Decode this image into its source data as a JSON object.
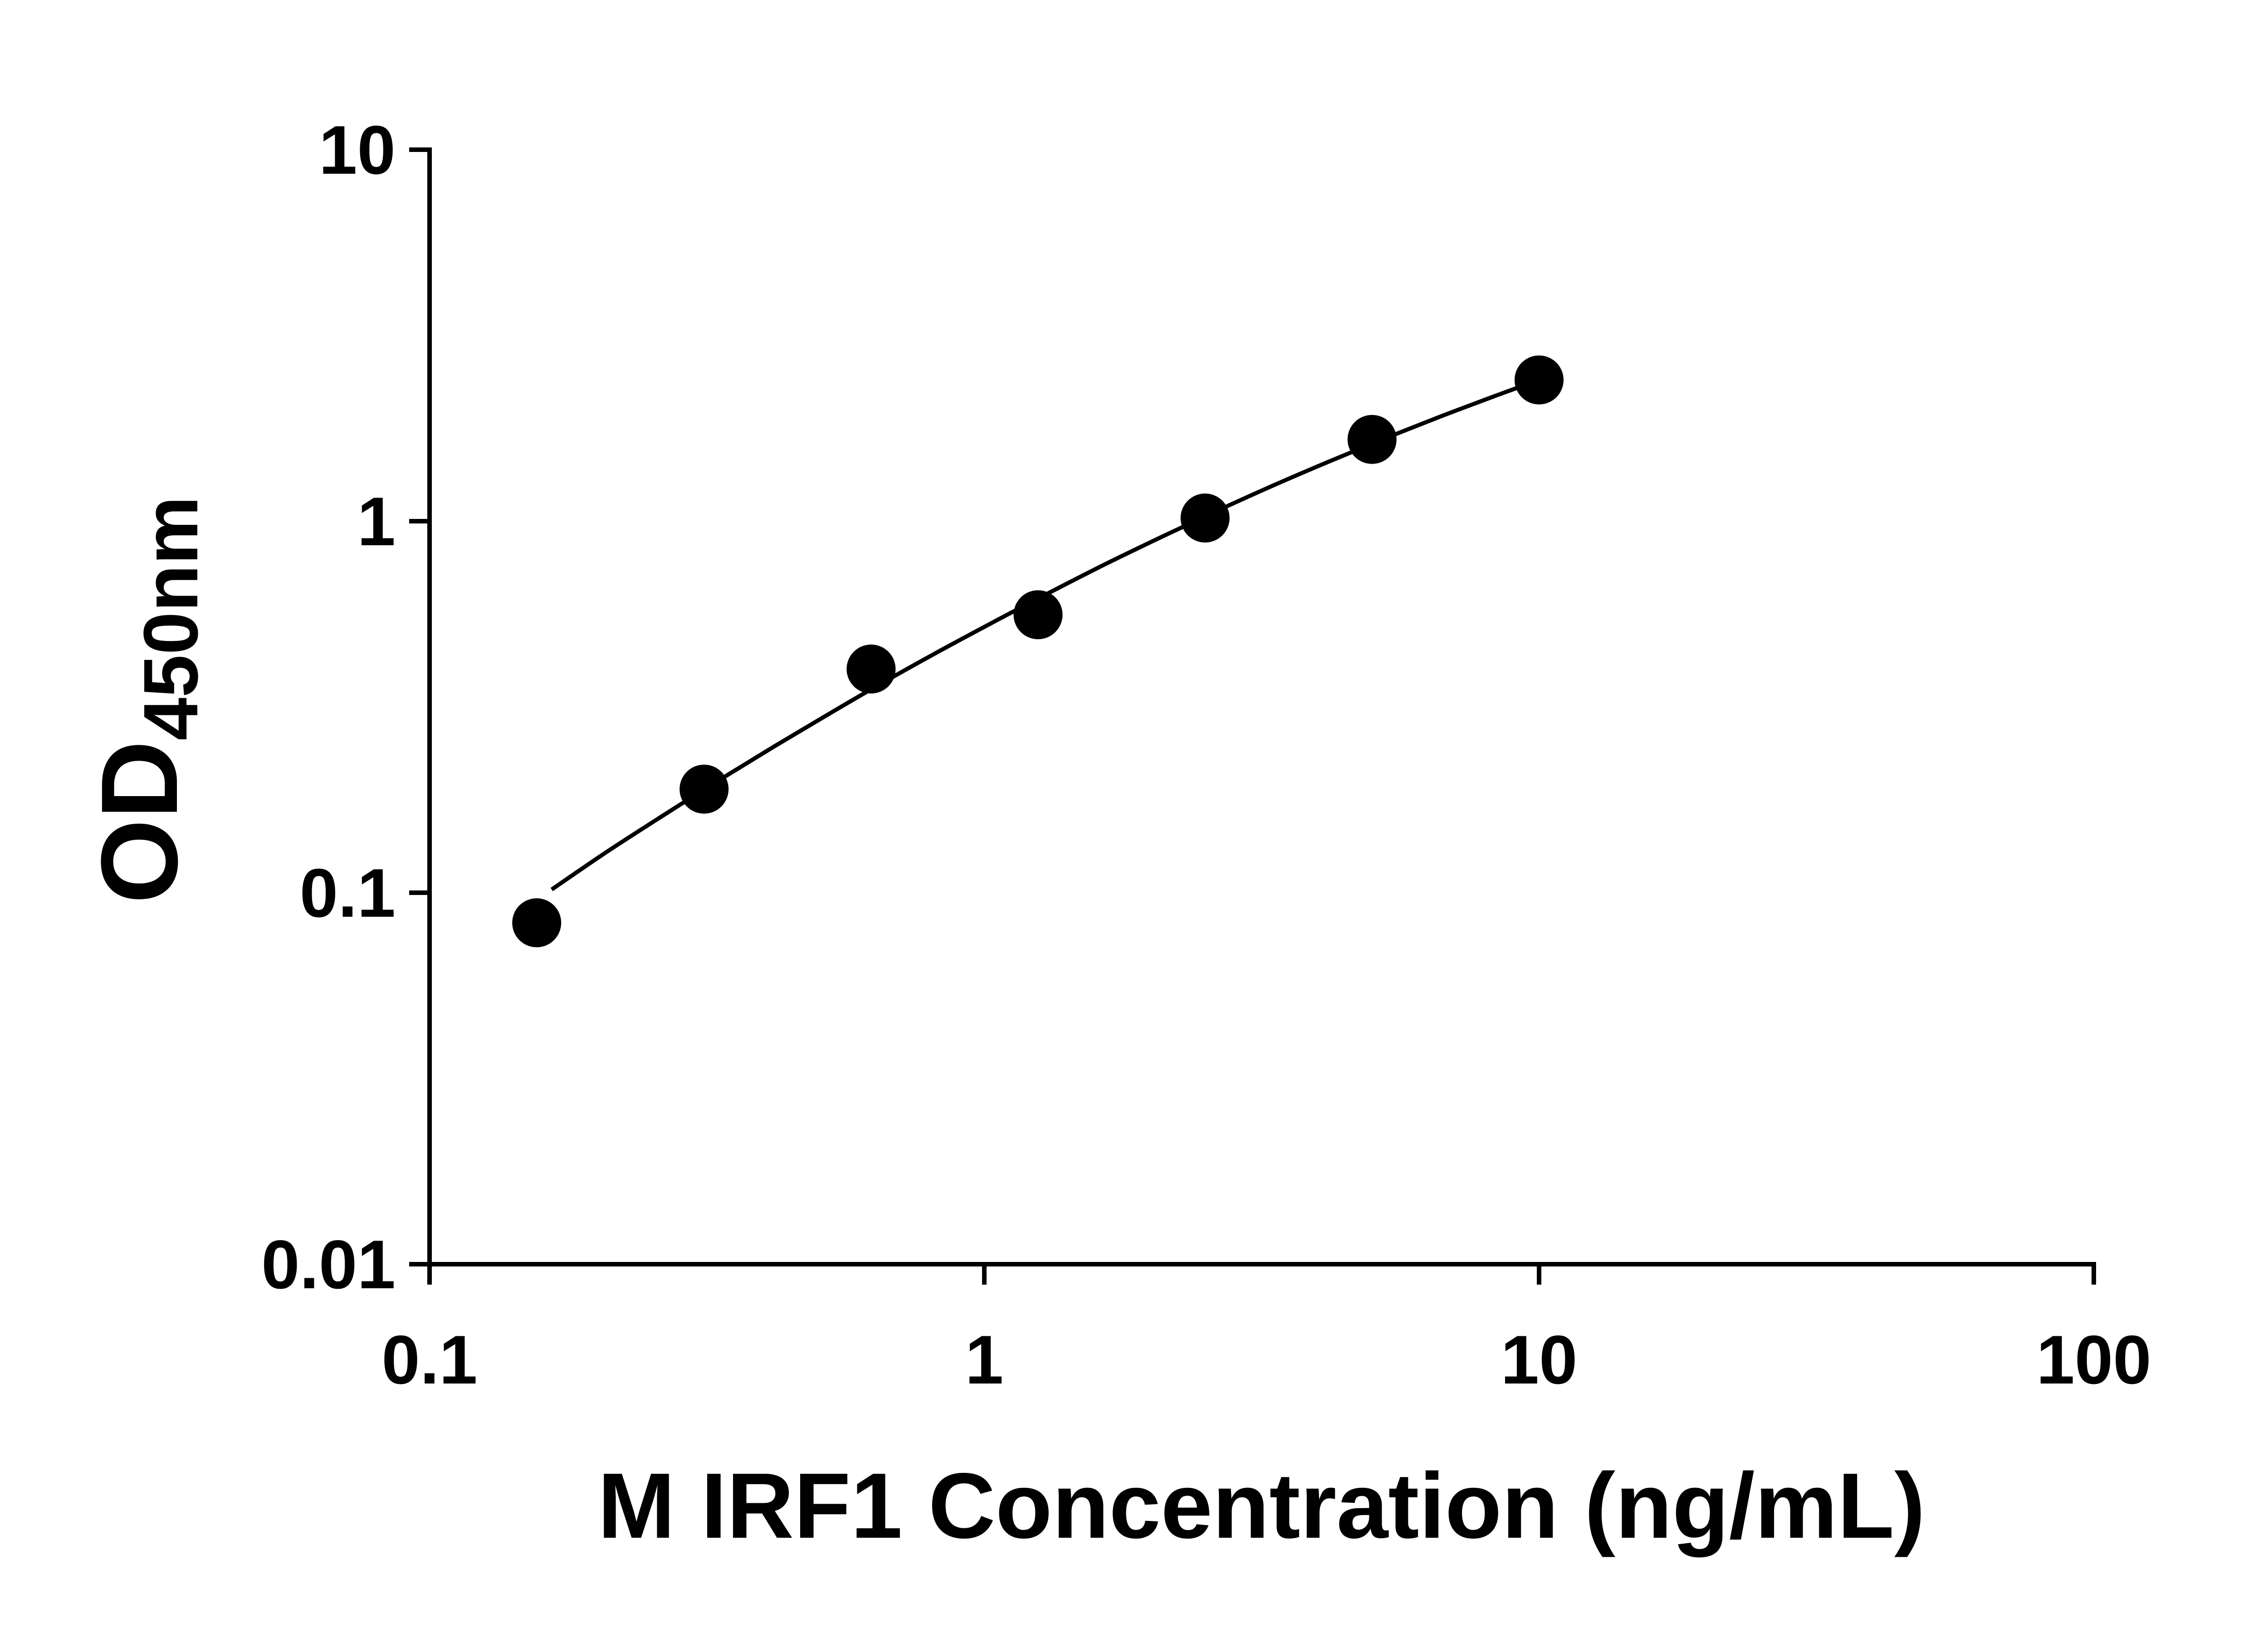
{
  "page": {
    "background_color": "#ffffff"
  },
  "chart_data": {
    "type": "scatter",
    "title": "",
    "xlabel": "M IRF1 Concentration (ng/mL)",
    "ylabel_main": "OD",
    "ylabel_sub": "450nm",
    "x_scale": "log",
    "y_scale": "log",
    "xlim": [
      0.1,
      100
    ],
    "ylim": [
      0.01,
      10
    ],
    "x_ticks": [
      0.1,
      1,
      10,
      100
    ],
    "x_tick_labels": [
      "0.1",
      "1",
      "10",
      "100"
    ],
    "y_ticks": [
      0.01,
      0.1,
      1,
      10
    ],
    "y_tick_labels": [
      "0.01",
      "0.1",
      "1",
      "10"
    ],
    "grid": false,
    "legend": null,
    "axis_color": "#000000",
    "series": [
      {
        "name": "fit-curve",
        "type": "line",
        "color": "#000000",
        "x": [
          0.166,
          0.209,
          0.263,
          0.331,
          0.417,
          0.525,
          0.661,
          0.832,
          1.05,
          1.32,
          1.66,
          2.09,
          2.63,
          3.31,
          4.17,
          5.25,
          6.61,
          8.32,
          10
        ],
        "y": [
          0.102,
          0.129,
          0.161,
          0.2,
          0.247,
          0.303,
          0.37,
          0.448,
          0.54,
          0.646,
          0.769,
          0.908,
          1.067,
          1.246,
          1.445,
          1.666,
          1.908,
          2.172,
          2.399
        ]
      },
      {
        "name": "standard-points",
        "type": "scatter",
        "marker": "circle",
        "color": "#000000",
        "x": [
          0.156,
          0.3125,
          0.625,
          1.25,
          2.5,
          5,
          10
        ],
        "y": [
          0.083,
          0.19,
          0.4,
          0.56,
          1.02,
          1.66,
          2.4
        ]
      }
    ]
  }
}
